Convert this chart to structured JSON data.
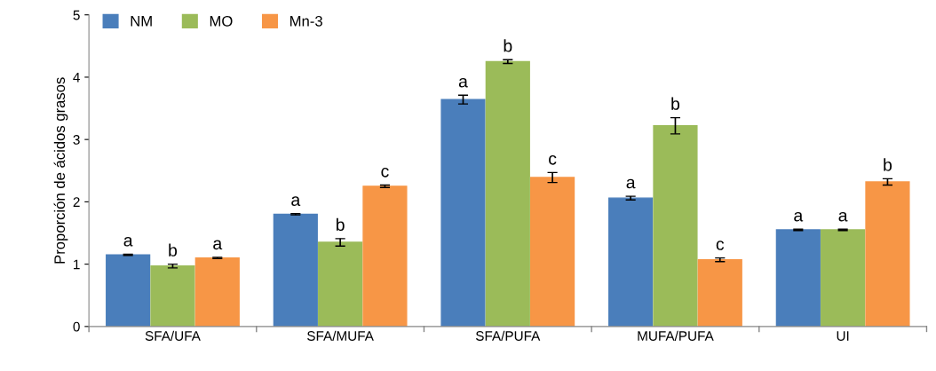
{
  "chart_data": {
    "type": "bar",
    "ylabel": "Proporción de ácidos grasos",
    "categories": [
      "SFA/UFA",
      "SFA/MUFA",
      "SFA/PUFA",
      "MUFA/PUFA",
      "UI"
    ],
    "series": [
      {
        "name": "NM",
        "color": "#4a7ebb",
        "values": [
          1.15,
          1.8,
          3.64,
          2.06,
          1.55
        ],
        "errors": [
          0.01,
          0.01,
          0.07,
          0.03,
          0.01
        ],
        "value_labels": [
          "a",
          "a",
          "a",
          "a",
          "a"
        ]
      },
      {
        "name": "MO",
        "color": "#9bbb59",
        "values": [
          0.97,
          1.35,
          4.25,
          3.22,
          1.55
        ],
        "errors": [
          0.03,
          0.06,
          0.03,
          0.13,
          0.01
        ],
        "value_labels": [
          "b",
          "b",
          "b",
          "b",
          "a"
        ]
      },
      {
        "name": "Mn-3",
        "color": "#f79646",
        "values": [
          1.1,
          2.25,
          2.39,
          1.07,
          2.32
        ],
        "errors": [
          0.01,
          0.02,
          0.08,
          0.03,
          0.05
        ],
        "value_labels": [
          "a",
          "c",
          "c",
          "c",
          "b"
        ]
      }
    ],
    "ylim": [
      0,
      5
    ],
    "yticks": [
      0,
      1,
      2,
      3,
      4,
      5
    ],
    "grid": false,
    "legend": "top left"
  }
}
